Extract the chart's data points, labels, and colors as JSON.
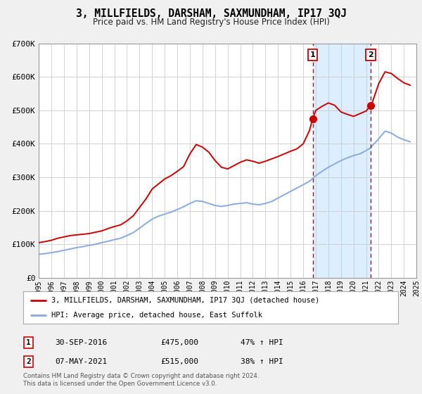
{
  "title": "3, MILLFIELDS, DARSHAM, SAXMUNDHAM, IP17 3QJ",
  "subtitle": "Price paid vs. HM Land Registry's House Price Index (HPI)",
  "background_color": "#f0f0f0",
  "plot_bg_color": "#ffffff",
  "grid_color": "#cccccc",
  "legend_label_red": "3, MILLFIELDS, DARSHAM, SAXMUNDHAM, IP17 3QJ (detached house)",
  "legend_label_blue": "HPI: Average price, detached house, East Suffolk",
  "sale1_date": "30-SEP-2016",
  "sale1_price": "£475,000",
  "sale1_hpi": "47% ↑ HPI",
  "sale1_x": 2016.75,
  "sale2_date": "07-MAY-2021",
  "sale2_price": "£515,000",
  "sale2_hpi": "38% ↑ HPI",
  "sale2_x": 2021.35,
  "sale1_price_val": 475000,
  "sale2_price_val": 515000,
  "footnote1": "Contains HM Land Registry data © Crown copyright and database right 2024.",
  "footnote2": "This data is licensed under the Open Government Licence v3.0.",
  "red_color": "#cc0000",
  "blue_color": "#88aadd",
  "highlight_bg": "#ddeeff",
  "ylim": [
    0,
    700000
  ],
  "xlim_start": 1995,
  "xlim_end": 2025,
  "yticks": [
    0,
    100000,
    200000,
    300000,
    400000,
    500000,
    600000,
    700000
  ],
  "ylabels": [
    "£0",
    "£100K",
    "£200K",
    "£300K",
    "£400K",
    "£500K",
    "£600K",
    "£700K"
  ],
  "red_line_x": [
    1995.0,
    1995.5,
    1996.0,
    1996.5,
    1997.0,
    1997.5,
    1998.0,
    1998.5,
    1999.0,
    1999.5,
    2000.0,
    2000.5,
    2001.0,
    2001.5,
    2002.0,
    2002.5,
    2003.0,
    2003.5,
    2004.0,
    2004.5,
    2005.0,
    2005.5,
    2006.0,
    2006.5,
    2007.0,
    2007.5,
    2008.0,
    2008.5,
    2009.0,
    2009.5,
    2010.0,
    2010.5,
    2011.0,
    2011.5,
    2012.0,
    2012.5,
    2013.0,
    2013.5,
    2014.0,
    2014.5,
    2015.0,
    2015.5,
    2016.0,
    2016.5,
    2016.75,
    2017.0,
    2017.5,
    2018.0,
    2018.5,
    2019.0,
    2019.5,
    2020.0,
    2020.5,
    2021.0,
    2021.35,
    2021.5,
    2022.0,
    2022.5,
    2023.0,
    2023.5,
    2024.0,
    2024.5
  ],
  "red_line_y": [
    105000,
    108000,
    112000,
    118000,
    122000,
    126000,
    128000,
    130000,
    132000,
    136000,
    140000,
    147000,
    153000,
    158000,
    170000,
    185000,
    210000,
    235000,
    265000,
    280000,
    295000,
    305000,
    318000,
    332000,
    370000,
    398000,
    390000,
    375000,
    350000,
    330000,
    325000,
    335000,
    345000,
    352000,
    348000,
    342000,
    348000,
    355000,
    362000,
    370000,
    378000,
    385000,
    400000,
    440000,
    475000,
    500000,
    512000,
    522000,
    515000,
    495000,
    488000,
    482000,
    490000,
    498000,
    515000,
    525000,
    580000,
    615000,
    610000,
    595000,
    582000,
    575000
  ],
  "blue_line_x": [
    1995.0,
    1995.5,
    1996.0,
    1996.5,
    1997.0,
    1997.5,
    1998.0,
    1998.5,
    1999.0,
    1999.5,
    2000.0,
    2000.5,
    2001.0,
    2001.5,
    2002.0,
    2002.5,
    2003.0,
    2003.5,
    2004.0,
    2004.5,
    2005.0,
    2005.5,
    2006.0,
    2006.5,
    2007.0,
    2007.5,
    2008.0,
    2008.5,
    2009.0,
    2009.5,
    2010.0,
    2010.5,
    2011.0,
    2011.5,
    2012.0,
    2012.5,
    2013.0,
    2013.5,
    2014.0,
    2014.5,
    2015.0,
    2015.5,
    2016.0,
    2016.5,
    2017.0,
    2017.5,
    2018.0,
    2018.5,
    2019.0,
    2019.5,
    2020.0,
    2020.5,
    2021.0,
    2021.35,
    2021.5,
    2022.0,
    2022.5,
    2023.0,
    2023.5,
    2024.0,
    2024.5
  ],
  "blue_line_y": [
    70000,
    72000,
    75000,
    78000,
    82000,
    86000,
    90000,
    93000,
    97000,
    100000,
    105000,
    109000,
    114000,
    118000,
    126000,
    135000,
    148000,
    162000,
    175000,
    184000,
    190000,
    196000,
    204000,
    212000,
    222000,
    230000,
    228000,
    222000,
    216000,
    213000,
    216000,
    220000,
    222000,
    224000,
    220000,
    218000,
    222000,
    228000,
    238000,
    248000,
    258000,
    268000,
    278000,
    288000,
    305000,
    318000,
    330000,
    340000,
    350000,
    358000,
    365000,
    370000,
    380000,
    388000,
    395000,
    415000,
    438000,
    432000,
    420000,
    412000,
    406000
  ]
}
